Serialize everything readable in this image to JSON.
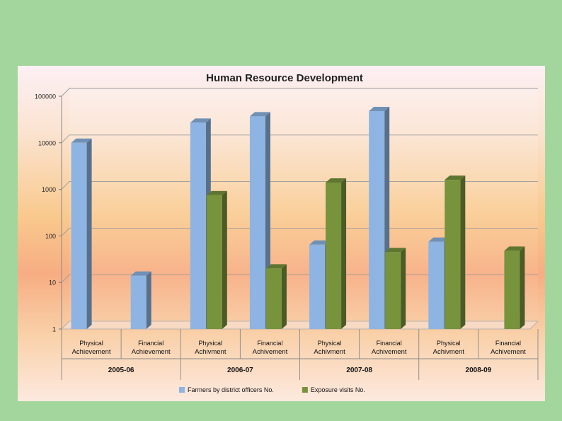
{
  "chart_data": {
    "type": "bar",
    "title": "Human Resource Development",
    "yscale": "log",
    "ylim": [
      1,
      100000
    ],
    "yticks": [
      "100000",
      "10000",
      "1000",
      "100",
      "10",
      "1"
    ],
    "categories": [
      {
        "label": "Physical Achievement",
        "line1": "Physical",
        "line2": "Achievement",
        "group": "2005-06"
      },
      {
        "label": "Financial Achievement",
        "line1": "Financial",
        "line2": "Achievement",
        "group": "2005-06"
      },
      {
        "label": "Physical Achivment",
        "line1": "Physical",
        "line2": "Achivment",
        "group": "2006-07"
      },
      {
        "label": "Financial Achivement",
        "line1": "Financial",
        "line2": "Achivement",
        "group": "2006-07"
      },
      {
        "label": "Physical Achivment",
        "line1": "Physical",
        "line2": "Achivment",
        "group": "2007-08"
      },
      {
        "label": "Financial Achivement",
        "line1": "Financial",
        "line2": "Achivement",
        "group": "2007-08"
      },
      {
        "label": "Physical Achivment",
        "line1": "Physical",
        "line2": "Achivment",
        "group": "2008-09"
      },
      {
        "label": "Financial Achivement",
        "line1": "Financial",
        "line2": "Achivement",
        "group": "2008-09"
      }
    ],
    "groups": [
      "2005-06",
      "2006-07",
      "2007-08",
      "2008-09"
    ],
    "series": [
      {
        "name": "Farmers by district officers No.",
        "color": "#8db4e2",
        "values": [
          10000,
          14,
          27000,
          37000,
          65,
          48000,
          75,
          0
        ]
      },
      {
        "name": "Exposure visits No.",
        "color": "#77933c",
        "values": [
          null,
          null,
          750,
          20,
          1400,
          45,
          1600,
          48
        ]
      }
    ],
    "legend_position": "bottom",
    "grid": true
  }
}
